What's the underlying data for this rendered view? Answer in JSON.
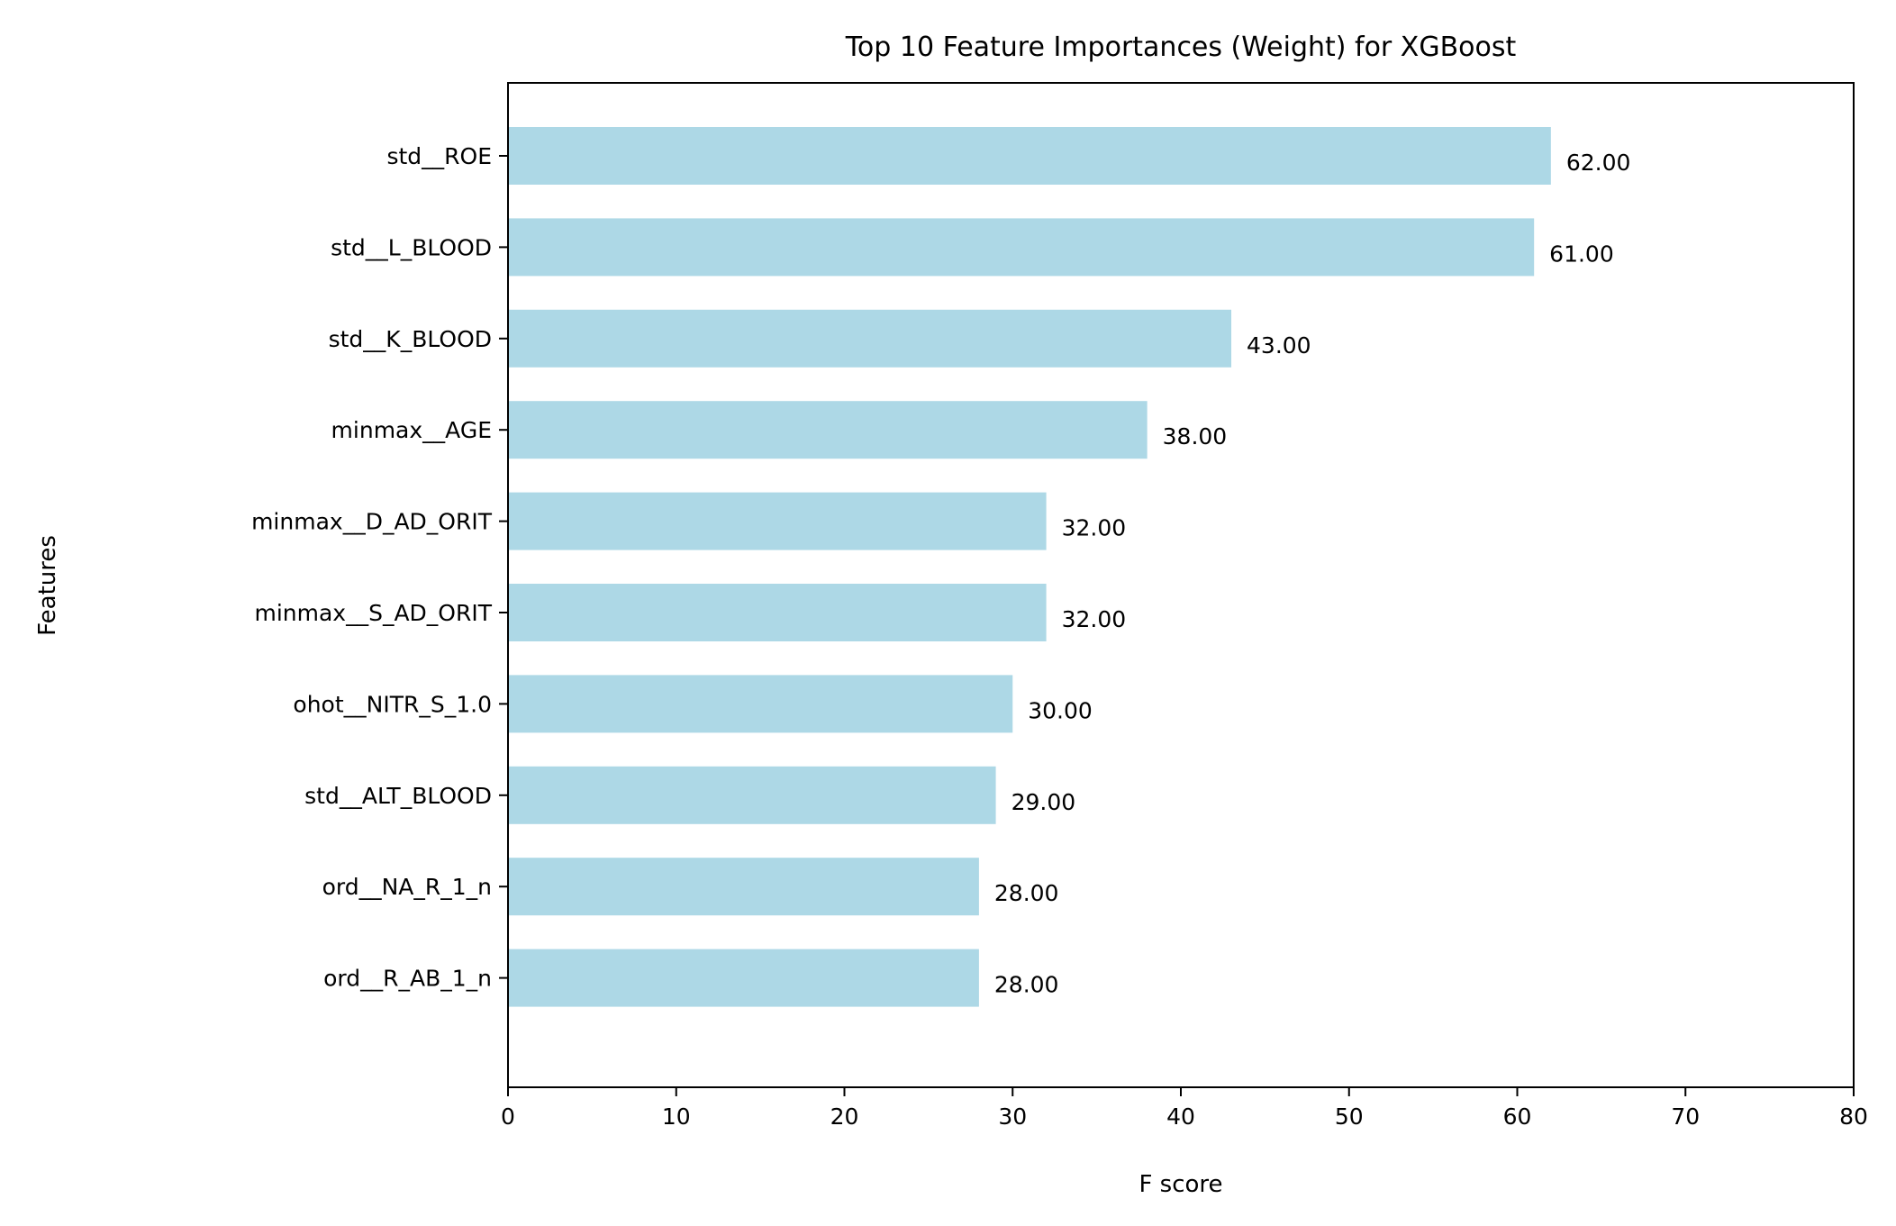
{
  "chart_data": {
    "type": "bar",
    "orientation": "horizontal",
    "title": "Top 10 Feature Importances (Weight) for XGBoost",
    "xlabel": "F score",
    "ylabel": "Features",
    "xlim": [
      0,
      80
    ],
    "xticks": [
      0,
      10,
      20,
      30,
      40,
      50,
      60,
      70,
      80
    ],
    "grid": false,
    "bar_color": "#add8e6",
    "categories": [
      "std__ROE",
      "std__L_BLOOD",
      "std__K_BLOOD",
      "minmax__AGE",
      "minmax__D_AD_ORIT",
      "minmax__S_AD_ORIT",
      "ohot__NITR_S_1.0",
      "std__ALT_BLOOD",
      "ord__NA_R_1_n",
      "ord__R_AB_1_n"
    ],
    "values": [
      62,
      61,
      43,
      38,
      32,
      32,
      30,
      29,
      28,
      28
    ],
    "value_labels": [
      "62.00",
      "61.00",
      "43.00",
      "38.00",
      "32.00",
      "32.00",
      "30.00",
      "29.00",
      "28.00",
      "28.00"
    ]
  }
}
